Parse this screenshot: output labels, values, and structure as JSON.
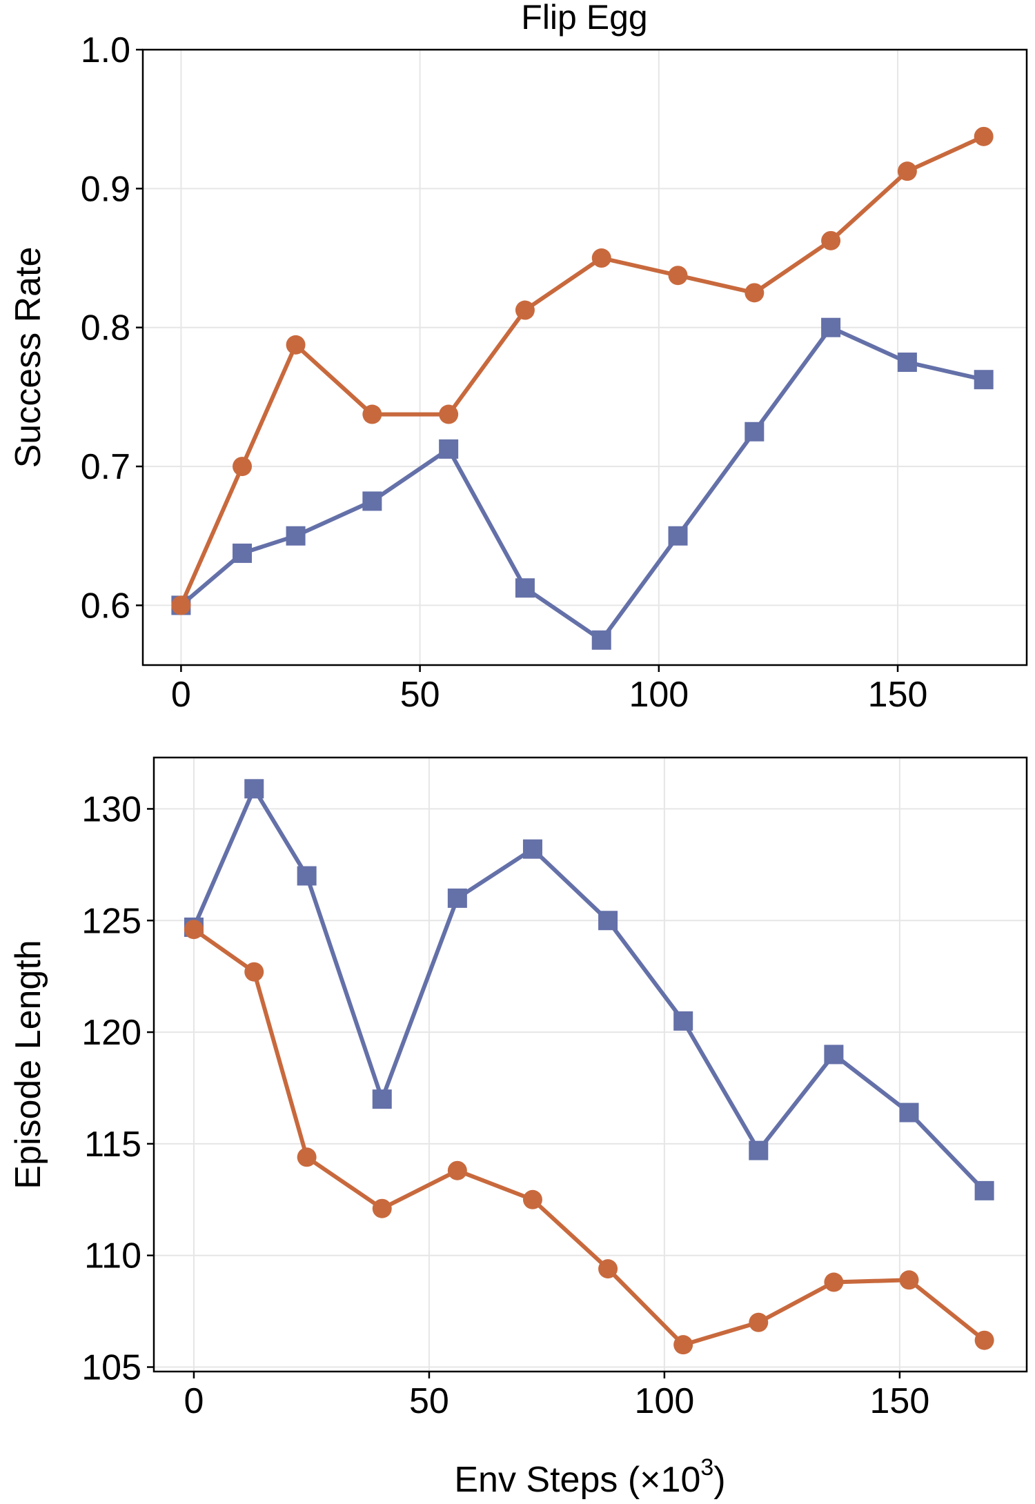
{
  "figure": {
    "title": "Flip Egg",
    "xlabel": "Env Steps (×10",
    "xlabel_exponent": "3",
    "xlabel_close": ")"
  },
  "colors": {
    "orange_series": "#c8693d",
    "blue_series": "#6470a8"
  },
  "chart_data": [
    {
      "type": "line",
      "title": "Flip Egg",
      "xlabel": "",
      "ylabel": "Success Rate",
      "xlim": [
        -8,
        177
      ],
      "ylim": [
        0.557,
        1.0
      ],
      "xticks": [
        0,
        50,
        100,
        150
      ],
      "xtick_labels": [
        "0",
        "50",
        "100",
        "150"
      ],
      "yticks": [
        0.6,
        0.7,
        0.8,
        0.9,
        1.0
      ],
      "ytick_labels": [
        "0.6",
        "0.7",
        "0.8",
        "0.9",
        "1.0"
      ],
      "grid": true,
      "series": [
        {
          "marker": "square",
          "color": "#6470a8",
          "x": [
            0,
            12.8,
            24,
            40,
            56,
            72,
            88,
            104,
            120,
            136,
            152,
            168
          ],
          "y": [
            0.6,
            0.6375,
            0.65,
            0.675,
            0.7125,
            0.6125,
            0.575,
            0.65,
            0.725,
            0.8,
            0.775,
            0.7625
          ]
        },
        {
          "marker": "circle",
          "color": "#c8693d",
          "x": [
            0,
            12.8,
            24,
            40,
            56,
            72,
            88,
            104,
            120,
            136,
            152,
            168
          ],
          "y": [
            0.6,
            0.7,
            0.7875,
            0.7375,
            0.7375,
            0.8125,
            0.85,
            0.8375,
            0.825,
            0.8625,
            0.9125,
            0.9375
          ]
        }
      ]
    },
    {
      "type": "line",
      "title": "",
      "xlabel": "Env Steps (×10^3)",
      "ylabel": "Episode Length",
      "xlim": [
        -8.5,
        177
      ],
      "ylim": [
        104.8,
        132.3
      ],
      "xticks": [
        0,
        50,
        100,
        150
      ],
      "xtick_labels": [
        "0",
        "50",
        "100",
        "150"
      ],
      "yticks": [
        105,
        110,
        115,
        120,
        125,
        130
      ],
      "ytick_labels": [
        "105",
        "110",
        "115",
        "120",
        "125",
        "130"
      ],
      "grid": true,
      "series": [
        {
          "marker": "square",
          "color": "#6470a8",
          "x": [
            0,
            12.8,
            24,
            40,
            56,
            72,
            88,
            104,
            120,
            136,
            152,
            168
          ],
          "y": [
            124.7,
            130.9,
            127.0,
            117.0,
            126.0,
            128.2,
            125.0,
            120.5,
            114.7,
            119.0,
            116.4,
            112.9
          ]
        },
        {
          "marker": "circle",
          "color": "#c8693d",
          "x": [
            0,
            12.8,
            24,
            40,
            56,
            72,
            88,
            104,
            120,
            136,
            152,
            168
          ],
          "y": [
            124.6,
            122.7,
            114.4,
            112.1,
            113.8,
            112.5,
            109.4,
            106.0,
            107.0,
            108.8,
            108.9,
            106.2
          ]
        }
      ]
    }
  ]
}
